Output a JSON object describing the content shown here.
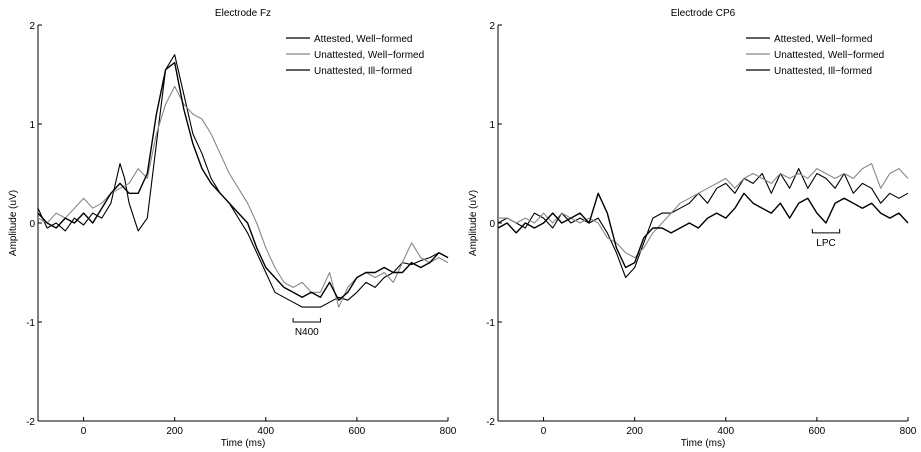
{
  "chart_data": [
    {
      "type": "line",
      "title": "Electrode Fz",
      "xlabel": "Time (ms)",
      "ylabel": "Amplitude (uV)",
      "xlim": [
        -100,
        800
      ],
      "ylim": [
        -2,
        2
      ],
      "xticks": [
        0,
        200,
        400,
        600,
        800
      ],
      "yticks": [
        -2,
        -1,
        0,
        1,
        2
      ],
      "legend_position": "top-right",
      "annotation": {
        "label": "N400",
        "x_start": 460,
        "x_end": 520,
        "y": -1.0
      },
      "series": [
        {
          "name": "Attested, Well−formed",
          "color": "#000000",
          "x": [
            -100,
            -80,
            -60,
            -40,
            -20,
            0,
            20,
            40,
            60,
            80,
            90,
            100,
            120,
            140,
            160,
            180,
            200,
            220,
            240,
            260,
            280,
            300,
            320,
            340,
            360,
            380,
            400,
            420,
            440,
            460,
            480,
            500,
            520,
            540,
            560,
            580,
            600,
            620,
            640,
            660,
            680,
            700,
            720,
            740,
            760,
            780,
            800
          ],
          "y": [
            0.15,
            -0.05,
            0.0,
            -0.08,
            0.05,
            -0.02,
            0.1,
            0.05,
            0.2,
            0.6,
            0.45,
            0.2,
            -0.08,
            0.05,
            0.8,
            1.55,
            1.7,
            1.3,
            0.9,
            0.7,
            0.45,
            0.3,
            0.2,
            0.05,
            -0.1,
            -0.3,
            -0.5,
            -0.7,
            -0.75,
            -0.8,
            -0.85,
            -0.85,
            -0.85,
            -0.8,
            -0.75,
            -0.78,
            -0.7,
            -0.6,
            -0.65,
            -0.55,
            -0.5,
            -0.4,
            -0.42,
            -0.38,
            -0.35,
            -0.3,
            -0.35
          ]
        },
        {
          "name": "Unattested, Well−formed",
          "color": "#888888",
          "x": [
            -100,
            -80,
            -60,
            -40,
            -20,
            0,
            20,
            40,
            60,
            80,
            100,
            120,
            140,
            160,
            180,
            200,
            220,
            240,
            260,
            280,
            300,
            320,
            340,
            360,
            380,
            400,
            420,
            440,
            460,
            480,
            500,
            520,
            540,
            560,
            580,
            600,
            620,
            640,
            660,
            680,
            700,
            720,
            740,
            760,
            780,
            800
          ],
          "y": [
            0.05,
            0.0,
            0.1,
            0.05,
            0.15,
            0.25,
            0.15,
            0.2,
            0.3,
            0.35,
            0.4,
            0.55,
            0.45,
            0.9,
            1.2,
            1.38,
            1.2,
            1.1,
            1.05,
            0.9,
            0.7,
            0.5,
            0.35,
            0.2,
            0.0,
            -0.25,
            -0.45,
            -0.6,
            -0.65,
            -0.6,
            -0.7,
            -0.7,
            -0.5,
            -0.85,
            -0.65,
            -0.55,
            -0.5,
            -0.55,
            -0.5,
            -0.6,
            -0.4,
            -0.2,
            -0.35,
            -0.4,
            -0.35,
            -0.4
          ]
        },
        {
          "name": "Unattested, Ill−formed",
          "color": "#000000",
          "x": [
            -100,
            -80,
            -60,
            -40,
            -20,
            0,
            20,
            40,
            60,
            80,
            100,
            120,
            140,
            160,
            180,
            200,
            220,
            240,
            260,
            280,
            300,
            320,
            340,
            360,
            380,
            400,
            420,
            440,
            460,
            480,
            500,
            520,
            540,
            560,
            580,
            600,
            620,
            640,
            660,
            680,
            700,
            720,
            740,
            760,
            780,
            800
          ],
          "y": [
            0.1,
            0.0,
            -0.05,
            0.05,
            0.0,
            0.1,
            0.0,
            0.15,
            0.3,
            0.4,
            0.3,
            0.3,
            0.5,
            1.1,
            1.55,
            1.62,
            1.15,
            0.8,
            0.55,
            0.4,
            0.3,
            0.2,
            0.1,
            0.0,
            -0.25,
            -0.45,
            -0.55,
            -0.65,
            -0.7,
            -0.75,
            -0.7,
            -0.75,
            -0.6,
            -0.78,
            -0.7,
            -0.55,
            -0.5,
            -0.5,
            -0.45,
            -0.5,
            -0.5,
            -0.4,
            -0.45,
            -0.4,
            -0.3,
            -0.35
          ]
        }
      ]
    },
    {
      "type": "line",
      "title": "Electrode CP6",
      "xlabel": "Time (ms)",
      "ylabel": "Amplitude (uV)",
      "xlim": [
        -100,
        800
      ],
      "ylim": [
        -2,
        2
      ],
      "xticks": [
        0,
        200,
        400,
        600,
        800
      ],
      "yticks": [
        -2,
        -1,
        0,
        1,
        2
      ],
      "legend_position": "top-right",
      "annotation": {
        "label": "LPC",
        "x_start": 590,
        "x_end": 650,
        "y": -0.1
      },
      "series": [
        {
          "name": "Attested, Well−formed",
          "color": "#000000",
          "x": [
            -100,
            -80,
            -60,
            -40,
            -20,
            0,
            20,
            40,
            60,
            80,
            100,
            120,
            140,
            160,
            180,
            200,
            220,
            240,
            260,
            280,
            300,
            320,
            340,
            360,
            380,
            400,
            420,
            440,
            460,
            480,
            500,
            520,
            540,
            560,
            580,
            600,
            620,
            640,
            660,
            680,
            700,
            720,
            740,
            760,
            780,
            800
          ],
          "y": [
            0.0,
            0.05,
            0.0,
            -0.05,
            0.1,
            0.05,
            -0.05,
            0.1,
            0.0,
            0.05,
            0.0,
            0.05,
            -0.1,
            -0.3,
            -0.55,
            -0.45,
            -0.2,
            0.05,
            0.1,
            0.1,
            0.15,
            0.2,
            0.3,
            0.2,
            0.35,
            0.4,
            0.3,
            0.45,
            0.4,
            0.5,
            0.3,
            0.5,
            0.35,
            0.55,
            0.35,
            0.5,
            0.45,
            0.35,
            0.5,
            0.3,
            0.4,
            0.35,
            0.2,
            0.3,
            0.25,
            0.3
          ]
        },
        {
          "name": "Unattested, Well−formed",
          "color": "#888888",
          "x": [
            -100,
            -80,
            -60,
            -40,
            -20,
            0,
            20,
            40,
            60,
            80,
            100,
            120,
            140,
            160,
            180,
            200,
            220,
            240,
            260,
            280,
            300,
            320,
            340,
            360,
            380,
            400,
            420,
            440,
            460,
            480,
            500,
            520,
            540,
            560,
            580,
            600,
            620,
            640,
            660,
            680,
            700,
            720,
            740,
            760,
            780,
            800
          ],
          "y": [
            0.05,
            0.05,
            0.0,
            0.05,
            0.0,
            0.1,
            0.0,
            0.1,
            0.05,
            0.0,
            0.05,
            0.0,
            -0.15,
            -0.2,
            -0.3,
            -0.35,
            -0.25,
            -0.1,
            0.0,
            0.1,
            0.2,
            0.25,
            0.3,
            0.35,
            0.4,
            0.45,
            0.35,
            0.45,
            0.5,
            0.45,
            0.4,
            0.5,
            0.45,
            0.5,
            0.45,
            0.55,
            0.5,
            0.45,
            0.5,
            0.45,
            0.55,
            0.6,
            0.35,
            0.5,
            0.55,
            0.45
          ]
        },
        {
          "name": "Unattested, Ill−formed",
          "color": "#000000",
          "x": [
            -100,
            -80,
            -60,
            -40,
            -20,
            0,
            20,
            40,
            60,
            80,
            100,
            120,
            140,
            160,
            180,
            200,
            220,
            240,
            260,
            280,
            300,
            320,
            340,
            360,
            380,
            400,
            420,
            440,
            460,
            480,
            500,
            520,
            540,
            560,
            580,
            600,
            620,
            640,
            660,
            680,
            700,
            720,
            740,
            760,
            780,
            800
          ],
          "y": [
            -0.05,
            0.0,
            -0.1,
            0.0,
            -0.05,
            0.0,
            0.1,
            0.0,
            0.05,
            0.1,
            0.0,
            0.3,
            0.1,
            -0.25,
            -0.45,
            -0.4,
            -0.15,
            -0.05,
            -0.05,
            -0.1,
            -0.05,
            0.0,
            -0.05,
            0.05,
            0.1,
            0.05,
            0.15,
            0.3,
            0.2,
            0.15,
            0.1,
            0.2,
            0.05,
            0.2,
            0.25,
            0.1,
            0.0,
            0.2,
            0.25,
            0.2,
            0.15,
            0.2,
            0.1,
            0.05,
            0.1,
            0.0
          ]
        }
      ]
    }
  ]
}
